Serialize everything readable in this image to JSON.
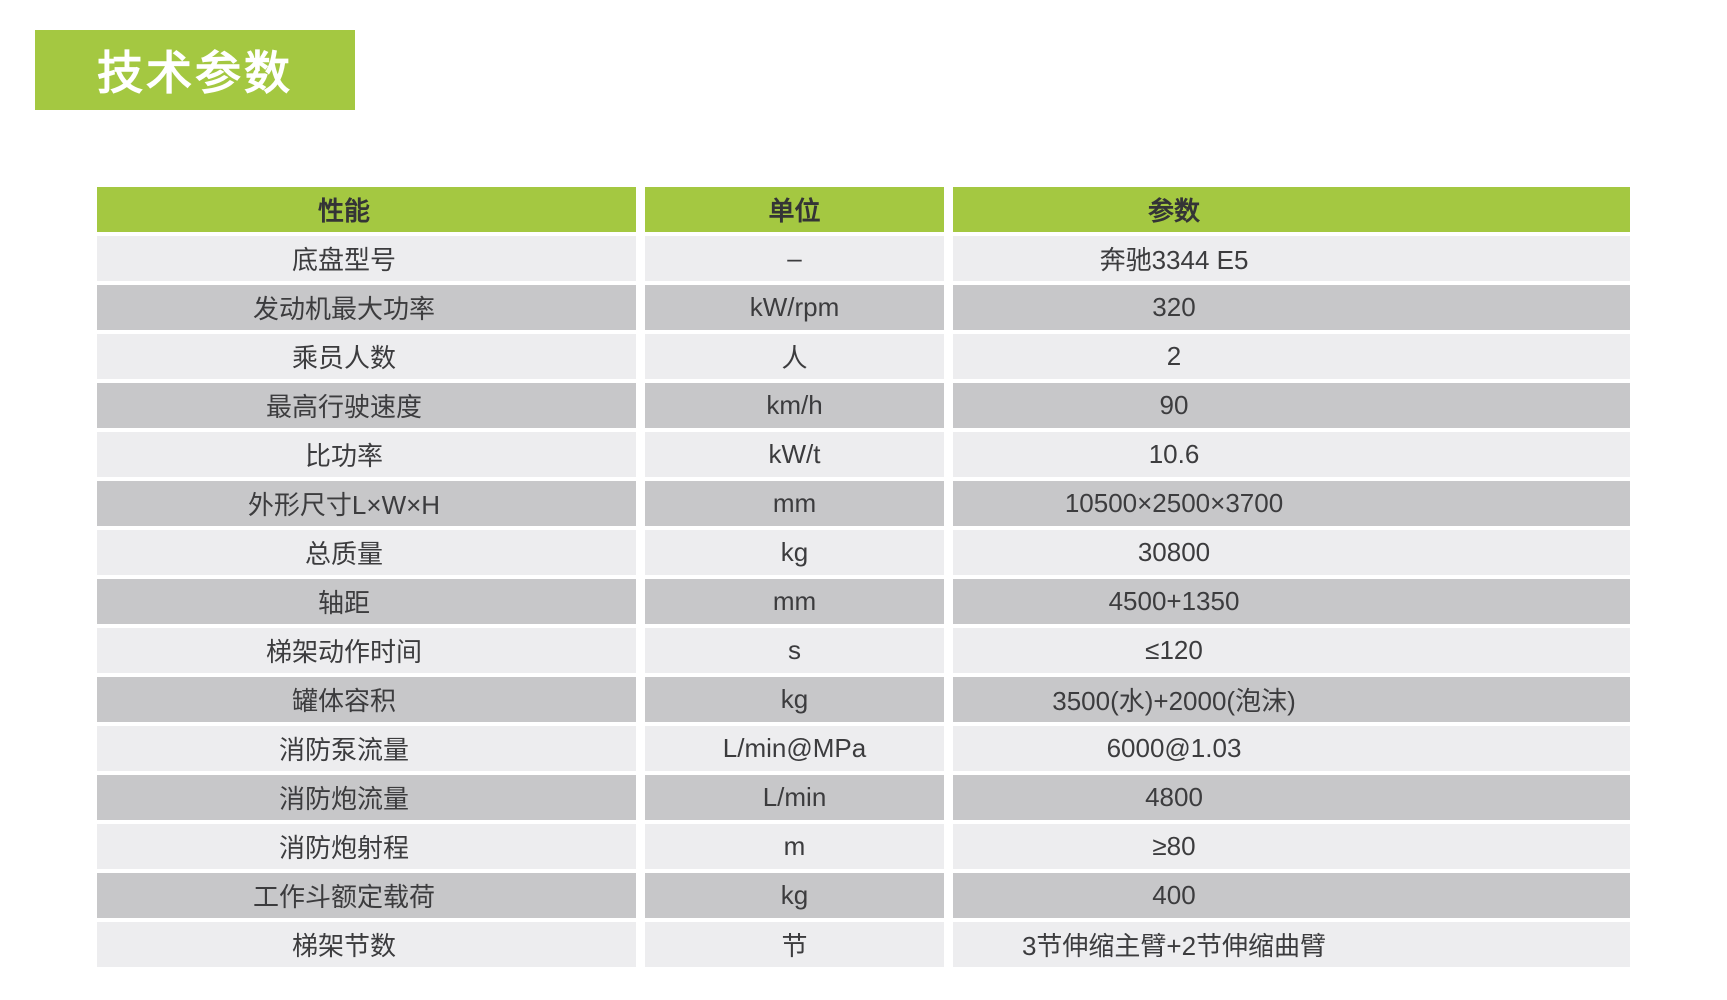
{
  "title": {
    "label": "技术参数"
  },
  "table": {
    "columns": [
      "性能",
      "单位",
      "参数"
    ],
    "rows": [
      {
        "name": "底盘型号",
        "unit": "–",
        "value": "奔驰3344 E5"
      },
      {
        "name": "发动机最大功率",
        "unit": "kW/rpm",
        "value": "320"
      },
      {
        "name": "乘员人数",
        "unit": "人",
        "value": "2"
      },
      {
        "name": "最高行驶速度",
        "unit": "km/h",
        "value": "90"
      },
      {
        "name": "比功率",
        "unit": "kW/t",
        "value": "10.6"
      },
      {
        "name": "外形尺寸L×W×H",
        "unit": "mm",
        "value": "10500×2500×3700"
      },
      {
        "name": "总质量",
        "unit": "kg",
        "value": "30800"
      },
      {
        "name": "轴距",
        "unit": "mm",
        "value": "4500+1350"
      },
      {
        "name": "梯架动作时间",
        "unit": "s",
        "value": "≤120"
      },
      {
        "name": "罐体容积",
        "unit": "kg",
        "value": "3500(水)+2000(泡沫)"
      },
      {
        "name": "消防泵流量",
        "unit": "L/min@MPa",
        "value": "6000@1.03"
      },
      {
        "name": "消防炮流量",
        "unit": "L/min",
        "value": "4800"
      },
      {
        "name": "消防炮射程",
        "unit": "m",
        "value": "≥80"
      },
      {
        "name": "工作斗额定载荷",
        "unit": "kg",
        "value": "400"
      },
      {
        "name": "梯架节数",
        "unit": "节",
        "value": "3节伸缩主臂+2节伸缩曲臂"
      }
    ]
  },
  "colors": {
    "accent_green": "#A4C841",
    "row_light": "#EDEDEF",
    "row_dark": "#C7C7C9",
    "text_dark": "#3C3C3E"
  }
}
